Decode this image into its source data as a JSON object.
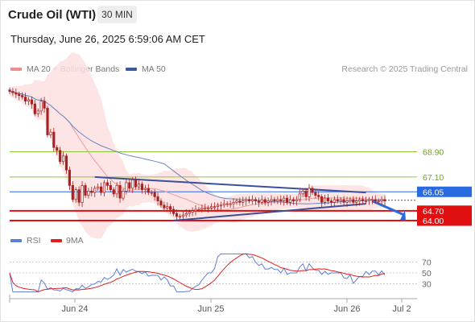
{
  "header": {
    "instrument": "Crude Oil (WTI)",
    "timeframe": "30 MIN",
    "datetime": "Thursday, June 26, 2025 6:59:06 AM CET"
  },
  "legend": {
    "items": [
      {
        "label": "MA 20 + Bollinger Bands",
        "color": "#f08c8c"
      },
      {
        "label": "MA 50",
        "color": "#3a5a9c"
      }
    ],
    "credit": "Research © 2025 Trading Central"
  },
  "rsi_legend": {
    "items": [
      {
        "label": "RSI",
        "color": "#5b7fd6"
      },
      {
        "label": "9MA",
        "color": "#e02020"
      }
    ]
  },
  "colors": {
    "resistance": "#8cc63f",
    "support": "#e01010",
    "pivot": "#2a6ae0",
    "trend": "#3c4f9a",
    "candle": "#a82020",
    "bollinger": "#fde0e0"
  },
  "chart_data": [
    {
      "type": "candlestick",
      "x_ticks": [
        "Jun 24",
        "Jun 25",
        "Jun 26",
        "Jul 2"
      ],
      "ylim": [
        63.2,
        74.2
      ],
      "grid": false,
      "last_price": 65.45,
      "levels": [
        {
          "label": "68.90",
          "value": 68.9,
          "kind": "resistance"
        },
        {
          "label": "67.10",
          "value": 67.1,
          "kind": "resistance"
        },
        {
          "label": "66.05",
          "value": 66.05,
          "kind": "pivot"
        },
        {
          "label": "64.70",
          "value": 64.7,
          "kind": "support"
        },
        {
          "label": "64.00",
          "value": 64.0,
          "kind": "support"
        }
      ],
      "series": [
        {
          "name": "MA 20",
          "style": "line"
        },
        {
          "name": "MA 50",
          "style": "line"
        },
        {
          "name": "Bollinger Bands",
          "style": "band"
        }
      ],
      "close": [
        73.2,
        73.1,
        73.0,
        72.9,
        72.8,
        72.5,
        72.6,
        72.3,
        71.6,
        71.8,
        72.5,
        72.0,
        70.1,
        70.3,
        69.2,
        69.0,
        68.2,
        68.6,
        67.6,
        66.5,
        65.5,
        66.2,
        65.3,
        66.5,
        65.8,
        66.1,
        66.0,
        66.3,
        66.4,
        66.0,
        66.7,
        66.5,
        66.2,
        65.9,
        66.5,
        65.6,
        66.1,
        66.7,
        66.3,
        66.9,
        66.4,
        66.6,
        66.2,
        66.3,
        66.0,
        66.0,
        65.7,
        65.4,
        65.1,
        64.9,
        65.0,
        64.8,
        64.5,
        64.3,
        64.3,
        64.4,
        64.5,
        64.6,
        64.7,
        64.8,
        64.8,
        64.9,
        64.9,
        64.9,
        65.0,
        65.0,
        65.1,
        65.1,
        65.2,
        65.2,
        65.2,
        65.3,
        65.4,
        65.3,
        65.4,
        65.5,
        65.4,
        65.5,
        65.4,
        65.3,
        65.5,
        65.3,
        65.4,
        65.5,
        65.4,
        65.5,
        65.4,
        65.6,
        65.3,
        65.5,
        65.4,
        65.5,
        65.9,
        66.1,
        65.7,
        66.3,
        66.0,
        65.8,
        65.7,
        65.3,
        65.6,
        65.4,
        65.3,
        65.5,
        65.4,
        65.5,
        65.3,
        65.4,
        65.5,
        65.3,
        65.4,
        65.5,
        65.4,
        65.4,
        65.5,
        65.5,
        65.4,
        65.4,
        65.5,
        65.4
      ]
    },
    {
      "type": "line",
      "ylim": [
        10,
        90
      ],
      "y_ticks": [
        "70",
        "50",
        "30"
      ],
      "series": [
        {
          "name": "RSI"
        },
        {
          "name": "9MA"
        }
      ]
    }
  ]
}
